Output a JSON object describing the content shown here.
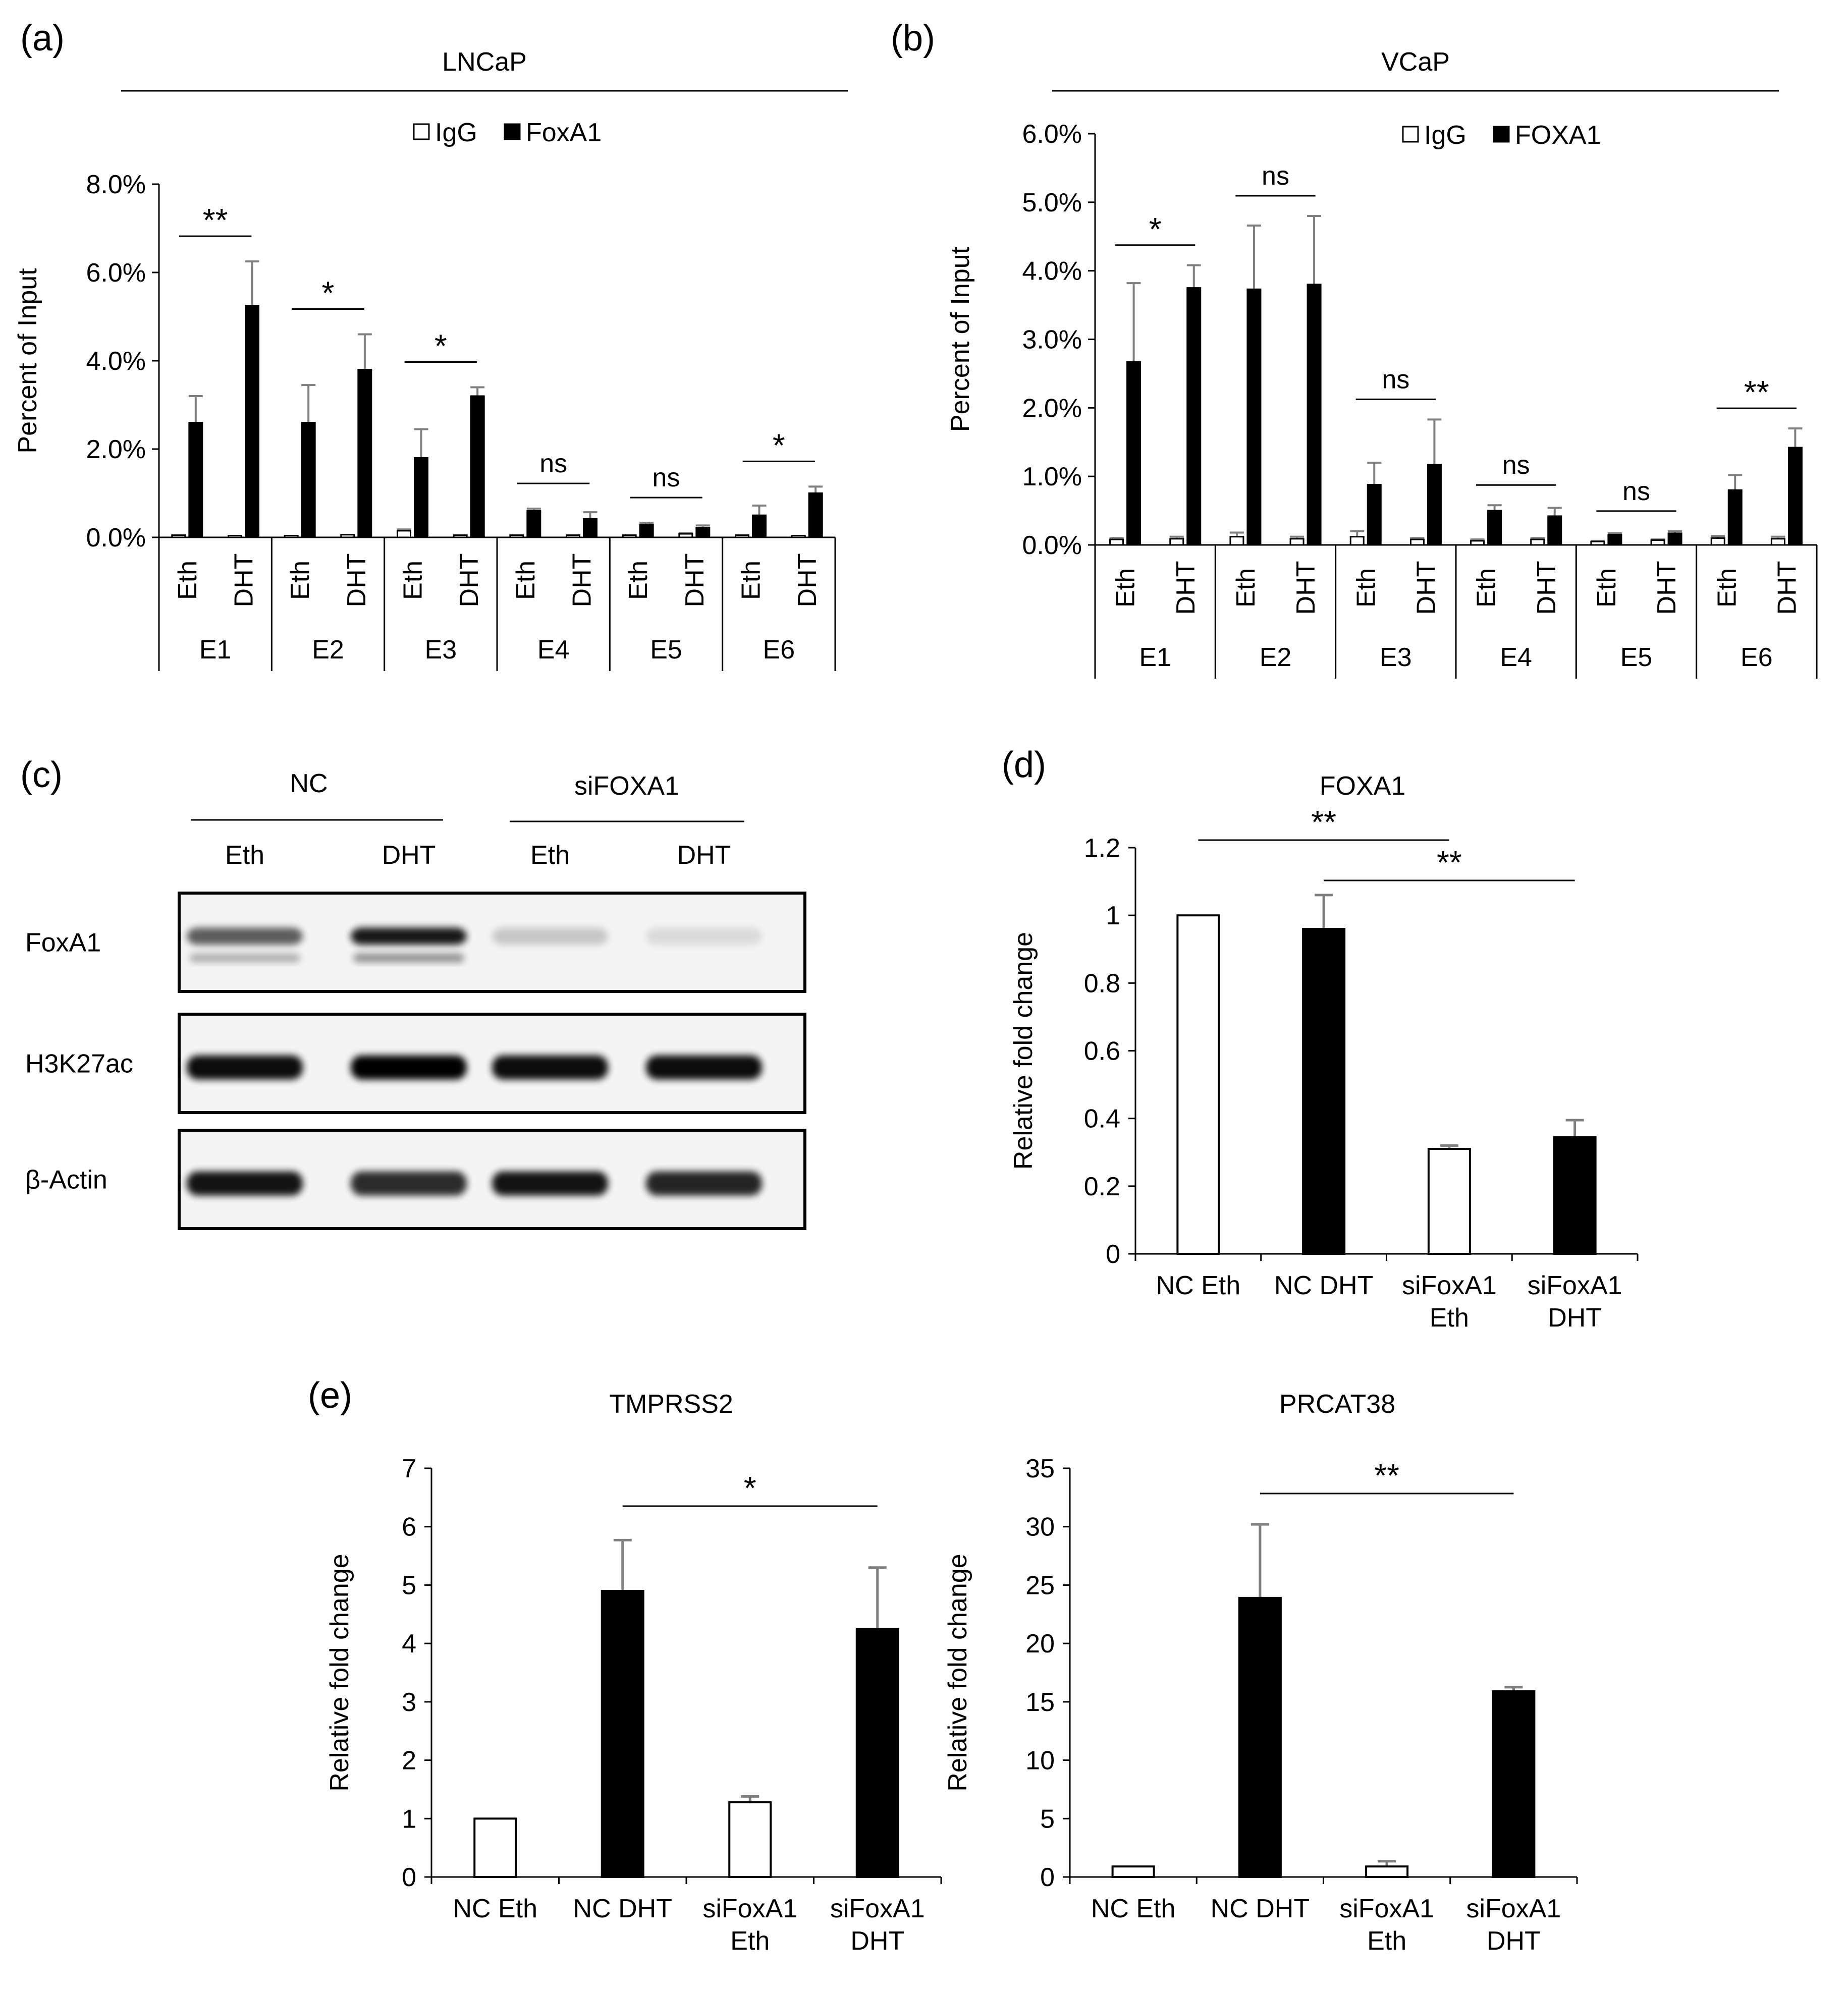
{
  "panel_labels": [
    "(a)",
    "(b)",
    "(c)",
    "(d)",
    "(e)"
  ],
  "chart_data": [
    {
      "id": "a",
      "type": "bar",
      "title": "LNCaP",
      "ylabel": "Percent of Input",
      "yticks": [
        "0.0%",
        "2.0%",
        "4.0%",
        "6.0%",
        "8.0%"
      ],
      "ylim": [
        0,
        8
      ],
      "legend": {
        "position": "top",
        "entries": [
          "IgG",
          "FoxA1"
        ]
      },
      "groups": [
        "E1",
        "E2",
        "E3",
        "E4",
        "E5",
        "E6"
      ],
      "conditions": [
        "Eth",
        "DHT"
      ],
      "series": [
        {
          "name": "IgG",
          "color": "#ffffff",
          "values": [
            [
              0.05,
              0.04
            ],
            [
              0.04,
              0.06
            ],
            [
              0.15,
              0.05
            ],
            [
              0.05,
              0.05
            ],
            [
              0.05,
              0.08
            ],
            [
              0.05,
              0.04
            ]
          ],
          "errors": [
            [
              0.0,
              0.0
            ],
            [
              0.0,
              0.0
            ],
            [
              0.03,
              0.0
            ],
            [
              0.0,
              0.0
            ],
            [
              0.0,
              0.02
            ],
            [
              0.0,
              0.0
            ]
          ]
        },
        {
          "name": "FoxA1",
          "color": "#000000",
          "values": [
            [
              2.6,
              5.25
            ],
            [
              2.6,
              3.8
            ],
            [
              1.8,
              3.2
            ],
            [
              0.6,
              0.42
            ],
            [
              0.28,
              0.22
            ],
            [
              0.5,
              1.0
            ]
          ],
          "errors": [
            [
              0.6,
              1.0
            ],
            [
              0.85,
              0.8
            ],
            [
              0.65,
              0.2
            ],
            [
              0.05,
              0.15
            ],
            [
              0.05,
              0.05
            ],
            [
              0.22,
              0.15
            ]
          ]
        }
      ],
      "significance": [
        "**",
        "*",
        "*",
        "ns",
        "ns",
        "*"
      ]
    },
    {
      "id": "b",
      "type": "bar",
      "title": "VCaP",
      "ylabel": "Percent of Input",
      "yticks": [
        "0.0%",
        "1.0%",
        "2.0%",
        "3.0%",
        "4.0%",
        "5.0%",
        "6.0%"
      ],
      "ylim": [
        0,
        6
      ],
      "legend": {
        "position": "top",
        "entries": [
          "IgG",
          "FOXA1"
        ]
      },
      "groups": [
        "E1",
        "E2",
        "E3",
        "E4",
        "E5",
        "E6"
      ],
      "conditions": [
        "Eth",
        "DHT"
      ],
      "series": [
        {
          "name": "IgG",
          "color": "#ffffff",
          "values": [
            [
              0.08,
              0.09
            ],
            [
              0.12,
              0.09
            ],
            [
              0.12,
              0.08
            ],
            [
              0.06,
              0.08
            ],
            [
              0.05,
              0.07
            ],
            [
              0.1,
              0.09
            ]
          ],
          "errors": [
            [
              0.02,
              0.03
            ],
            [
              0.06,
              0.03
            ],
            [
              0.08,
              0.02
            ],
            [
              0.02,
              0.02
            ],
            [
              0.01,
              0.01
            ],
            [
              0.03,
              0.03
            ]
          ]
        },
        {
          "name": "FOXA1",
          "color": "#000000",
          "values": [
            [
              2.67,
              3.75
            ],
            [
              3.73,
              3.8
            ],
            [
              0.88,
              1.17
            ],
            [
              0.5,
              0.42
            ],
            [
              0.15,
              0.17
            ],
            [
              0.8,
              1.42
            ]
          ],
          "errors": [
            [
              1.15,
              0.33
            ],
            [
              0.93,
              1.0
            ],
            [
              0.32,
              0.66
            ],
            [
              0.08,
              0.12
            ],
            [
              0.02,
              0.03
            ],
            [
              0.22,
              0.28
            ]
          ]
        }
      ],
      "significance": [
        "*",
        "ns",
        "ns",
        "ns",
        "ns",
        "**"
      ]
    },
    {
      "id": "d",
      "type": "bar",
      "title": "FOXA1",
      "ylabel": "Relative  fold change",
      "yticks": [
        "0",
        "0.2",
        "0.4",
        "0.6",
        "0.8",
        "1",
        "1.2"
      ],
      "ylim": [
        0,
        1.2
      ],
      "categories": [
        "NC Eth",
        "NC DHT",
        "siFoxA1\nEth",
        "siFoxA1\nDHT"
      ],
      "values": [
        1.0,
        0.96,
        0.31,
        0.345
      ],
      "errors": [
        0.0,
        0.1,
        0.01,
        0.05
      ],
      "colors": [
        "#ffffff",
        "#000000",
        "#ffffff",
        "#000000"
      ],
      "significance": [
        {
          "from": 0,
          "to": 2,
          "label": "**"
        },
        {
          "from": 1,
          "to": 3,
          "label": "**"
        }
      ]
    },
    {
      "id": "e1",
      "type": "bar",
      "title": "TMPRSS2",
      "ylabel": "Relative  fold change",
      "yticks": [
        "0",
        "1",
        "2",
        "3",
        "4",
        "5",
        "6",
        "7"
      ],
      "ylim": [
        0,
        7
      ],
      "categories": [
        "NC Eth",
        "NC DHT",
        "siFoxA1\nEth",
        "siFoxA1\nDHT"
      ],
      "values": [
        1.0,
        4.9,
        1.28,
        4.25
      ],
      "errors": [
        0.0,
        0.87,
        0.1,
        1.05
      ],
      "colors": [
        "#ffffff",
        "#000000",
        "#ffffff",
        "#000000"
      ],
      "significance": [
        {
          "from": 1,
          "to": 3,
          "label": "*"
        }
      ]
    },
    {
      "id": "e2",
      "type": "bar",
      "title": "PRCAT38",
      "ylabel": "Relative  fold change",
      "yticks": [
        "0",
        "5",
        "10",
        "15",
        "20",
        "25",
        "30",
        "35"
      ],
      "ylim": [
        0,
        35
      ],
      "categories": [
        "NC Eth",
        "NC DHT",
        "siFoxA1\nEth",
        "siFoxA1\nDHT"
      ],
      "values": [
        0.9,
        23.9,
        0.9,
        15.9
      ],
      "errors": [
        0.0,
        6.3,
        0.45,
        0.35
      ],
      "colors": [
        "#ffffff",
        "#000000",
        "#ffffff",
        "#000000"
      ],
      "significance": [
        {
          "from": 1,
          "to": 3,
          "label": "**"
        }
      ]
    }
  ],
  "blot": {
    "groups": [
      "NC",
      "siFOXA1"
    ],
    "lanes": [
      "Eth",
      "DHT",
      "Eth",
      "DHT"
    ],
    "rows": [
      {
        "label": "FoxA1",
        "intensity": [
          0.62,
          0.9,
          0.18,
          0.1
        ],
        "double_band": [
          true,
          true,
          false,
          false
        ]
      },
      {
        "label": "H3K27ac",
        "intensity": [
          0.95,
          1.0,
          0.95,
          0.95
        ],
        "double_band": [
          false,
          false,
          false,
          false
        ]
      },
      {
        "label": "β-Actin",
        "intensity": [
          0.92,
          0.82,
          0.92,
          0.85
        ],
        "double_band": [
          false,
          false,
          false,
          false
        ]
      }
    ]
  }
}
